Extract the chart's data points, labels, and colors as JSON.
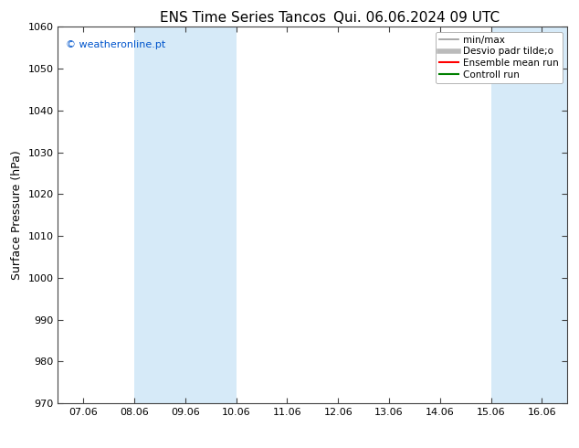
{
  "title_left": "ENS Time Series Tancos",
  "title_right": "Qui. 06.06.2024 09 UTC",
  "ylabel": "Surface Pressure (hPa)",
  "ylim": [
    970,
    1060
  ],
  "yticks": [
    970,
    980,
    990,
    1000,
    1010,
    1020,
    1030,
    1040,
    1050,
    1060
  ],
  "xtick_labels": [
    "07.06",
    "08.06",
    "09.06",
    "10.06",
    "11.06",
    "12.06",
    "13.06",
    "14.06",
    "15.06",
    "16.06"
  ],
  "watermark": "© weatheronline.pt",
  "watermark_color": "#0055cc",
  "bg_color": "#ffffff",
  "plot_bg_color": "#ffffff",
  "shaded_regions": [
    {
      "xstart": 1,
      "xend": 3,
      "color": "#d6eaf8"
    },
    {
      "xstart": 8,
      "xend": 10,
      "color": "#d6eaf8"
    }
  ],
  "legend_entries": [
    {
      "label": "min/max",
      "color": "#999999",
      "lw": 1.2,
      "ls": "-"
    },
    {
      "label": "Desvio padr tilde;o",
      "color": "#bbbbbb",
      "lw": 4,
      "ls": "-"
    },
    {
      "label": "Ensemble mean run",
      "color": "#ff0000",
      "lw": 1.5,
      "ls": "-"
    },
    {
      "label": "Controll run",
      "color": "#008000",
      "lw": 1.5,
      "ls": "-"
    }
  ],
  "title_fontsize": 11,
  "tick_fontsize": 8,
  "ylabel_fontsize": 9,
  "watermark_fontsize": 8
}
